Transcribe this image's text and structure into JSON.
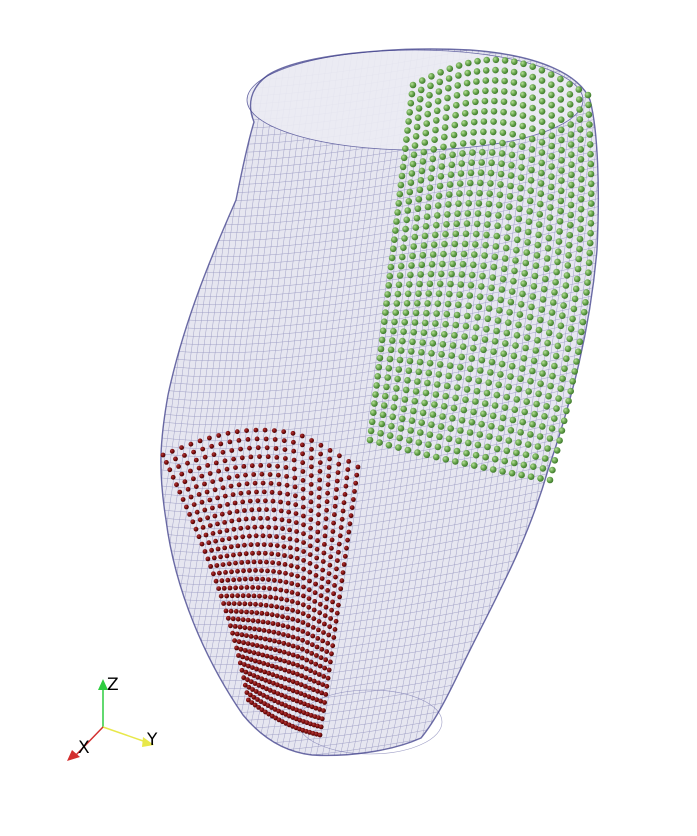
{
  "scene": {
    "background": "#ffffff",
    "mesh": {
      "fill": "#e6e6f0",
      "wire_color": "#5c5c9e",
      "outline_color": "#3d3d8a"
    },
    "region_red": {
      "color": "#7a0c0c",
      "columns": 22
    },
    "region_green": {
      "color": "#6aa84f",
      "columns": 20
    }
  },
  "axes": {
    "x_label": "X",
    "y_label": "Y",
    "z_label": "Z",
    "x_color": "#d32f2f",
    "y_color": "#e8e84a",
    "z_color": "#2ecc40"
  }
}
